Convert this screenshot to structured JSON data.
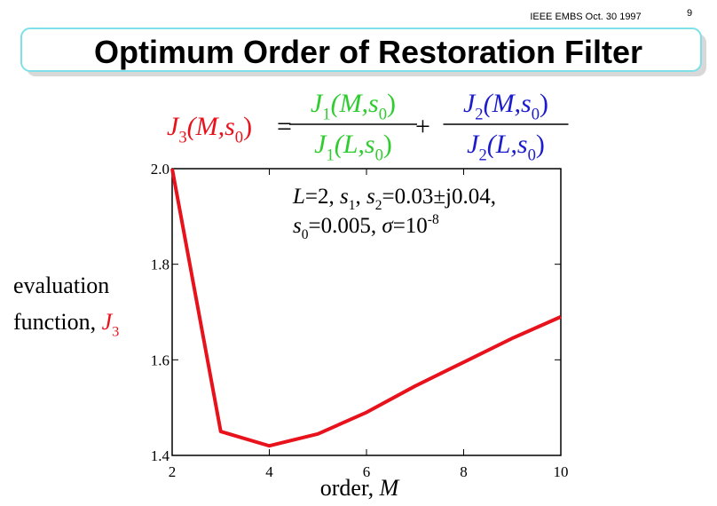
{
  "header": {
    "event": "IEEE EMBS Oct. 30 1997",
    "page": "9"
  },
  "title": "Optimum Order of Restoration Filter",
  "formula": {
    "lhs": {
      "color": "#e8121c",
      "segments": [
        {
          "text": "J",
          "italic": true
        },
        {
          "text": "3",
          "shift": "sub"
        },
        {
          "text": "(M,s",
          "italic": true
        },
        {
          "text": "0",
          "shift": "sub"
        },
        {
          "text": ")"
        }
      ]
    },
    "equals": "=",
    "plus": "+",
    "fraction1": {
      "color": "#2ecc2e",
      "numerator": [
        {
          "text": "J",
          "italic": true
        },
        {
          "text": "1",
          "shift": "sub"
        },
        {
          "text": "(M,s",
          "italic": true
        },
        {
          "text": "0",
          "shift": "sub"
        },
        {
          "text": ")"
        }
      ],
      "denominator": [
        {
          "text": "J",
          "italic": true
        },
        {
          "text": "1",
          "shift": "sub"
        },
        {
          "text": "(L,s",
          "italic": true
        },
        {
          "text": "0",
          "shift": "sub"
        },
        {
          "text": ")"
        }
      ]
    },
    "fraction2": {
      "color": "#1c1ccc",
      "numerator": [
        {
          "text": "J",
          "italic": true
        },
        {
          "text": "2",
          "shift": "sub"
        },
        {
          "text": "(M,s",
          "italic": true
        },
        {
          "text": "0",
          "shift": "sub"
        },
        {
          "text": ")"
        }
      ],
      "denominator": [
        {
          "text": "J",
          "italic": true
        },
        {
          "text": "2",
          "shift": "sub"
        },
        {
          "text": "(L,s",
          "italic": true
        },
        {
          "text": "0",
          "shift": "sub"
        },
        {
          "text": ")"
        }
      ]
    }
  },
  "chart_data": {
    "type": "line",
    "annotation": [
      [
        {
          "text": "L",
          "italic": true
        },
        {
          "text": "=2, "
        },
        {
          "text": "s",
          "italic": true
        },
        {
          "text": "1",
          "shift": "sub"
        },
        {
          "text": ", "
        },
        {
          "text": "s",
          "italic": true
        },
        {
          "text": "2",
          "shift": "sub"
        },
        {
          "text": "=0.03±j0.04,"
        }
      ],
      [
        {
          "text": "s",
          "italic": true
        },
        {
          "text": "0",
          "shift": "sub"
        },
        {
          "text": "=0.005, "
        },
        {
          "text": "σ",
          "italic": true
        },
        {
          "text": "=10"
        },
        {
          "text": "-8",
          "shift": "sup"
        }
      ]
    ],
    "ylabel": {
      "line1": "evaluation",
      "line2": [
        {
          "text": "function, "
        },
        {
          "text": "J",
          "italic": true,
          "color": "#e8121c"
        },
        {
          "text": "3",
          "shift": "sub",
          "color": "#e8121c"
        }
      ]
    },
    "xlabel": [
      {
        "text": "order, "
      },
      {
        "text": "M",
        "italic": true
      }
    ],
    "x": [
      2,
      3,
      4,
      5,
      6,
      7,
      8,
      9,
      10
    ],
    "values": [
      2.0,
      1.45,
      1.42,
      1.445,
      1.49,
      1.545,
      1.595,
      1.645,
      1.69
    ],
    "color": "#e8121c",
    "xlim": [
      2,
      10
    ],
    "ylim": [
      1.4,
      2.0
    ],
    "xticks": [
      2,
      4,
      6,
      8,
      10
    ],
    "yticks": [
      {
        "value": 1.4,
        "label": "1.4"
      },
      {
        "value": 1.6,
        "label": "1.6"
      },
      {
        "value": 1.8,
        "label": "1.8"
      },
      {
        "value": 2.0,
        "label": "2.0"
      }
    ]
  }
}
